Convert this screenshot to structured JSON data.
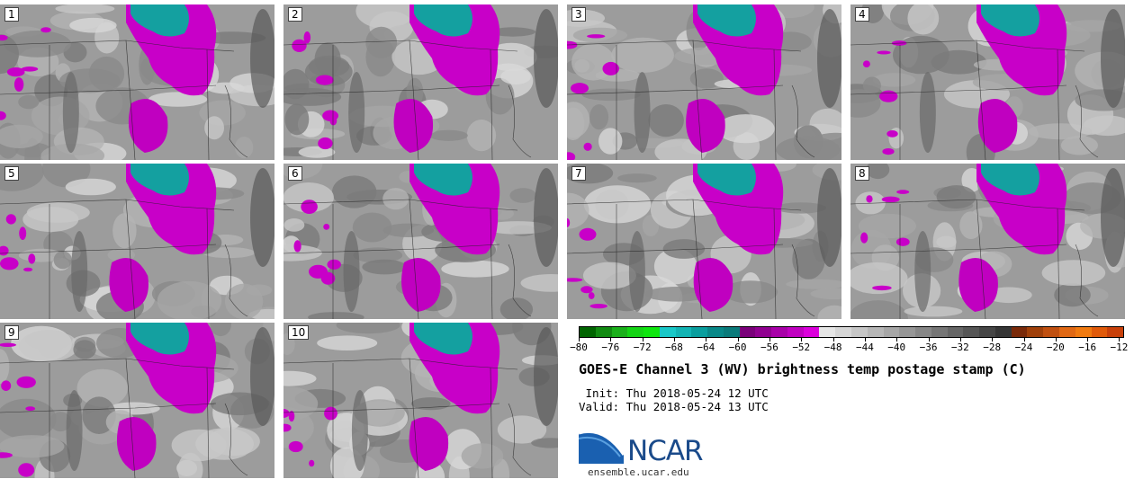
{
  "panels": [
    {
      "label": "1"
    },
    {
      "label": "2"
    },
    {
      "label": "3"
    },
    {
      "label": "4"
    },
    {
      "label": "5"
    },
    {
      "label": "6"
    },
    {
      "label": "7"
    },
    {
      "label": "8"
    },
    {
      "label": "9"
    },
    {
      "label": "10"
    }
  ],
  "colorbar": {
    "ticks": [
      "−80",
      "−76",
      "−72",
      "−68",
      "−64",
      "−60",
      "−56",
      "−52",
      "−48",
      "−44",
      "−40",
      "−36",
      "−32",
      "−28",
      "−24",
      "−20",
      "−16",
      "−12"
    ],
    "colors": [
      "#006400",
      "#118a11",
      "#1ab01a",
      "#14d414",
      "#0ee60e",
      "#19c8c8",
      "#12b4b4",
      "#0a9e9e",
      "#098888",
      "#0a7a7a",
      "#7a007a",
      "#900090",
      "#a800a8",
      "#c000c0",
      "#dc00dc",
      "#e6e6e6",
      "#d6d6d6",
      "#c6c6c6",
      "#b6b6b6",
      "#a6a6a6",
      "#969696",
      "#868686",
      "#767676",
      "#666666",
      "#565656",
      "#464646",
      "#363636",
      "#7a2a0a",
      "#a0400a",
      "#c05010",
      "#e06814",
      "#f07a10",
      "#e05a0a",
      "#c8400a"
    ]
  },
  "title": "GOES-E Channel 3 (WV) brightness temp postage stamp (C)",
  "init": " Init: Thu 2018-05-24 12 UTC",
  "valid": "Valid: Thu 2018-05-24 13 UTC",
  "logo": {
    "text": "NCAR",
    "website": "ensemble.ucar.edu",
    "color": "#1a4a8a"
  }
}
